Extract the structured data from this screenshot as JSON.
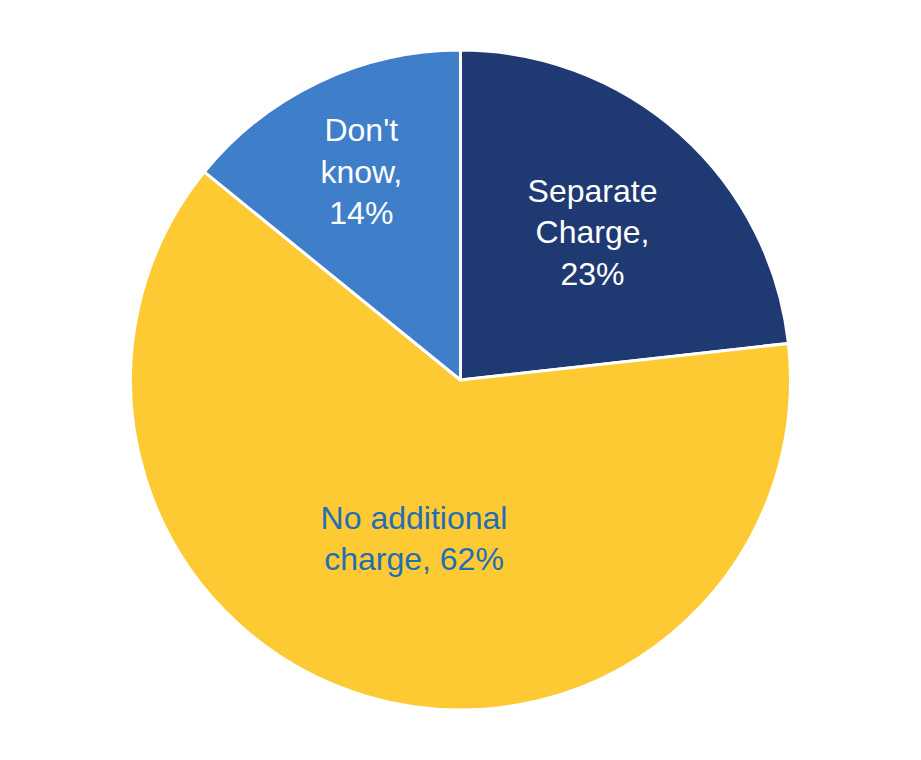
{
  "chart_data": {
    "type": "pie",
    "categories": [
      "Separate Charge",
      "No additional charge",
      "Don't know"
    ],
    "values": [
      23,
      62,
      14
    ],
    "value_labels": [
      "Separate Charge, 23%",
      "No additional charge, 62%",
      "Don't know, 14%"
    ],
    "colors": [
      "#1f3a73",
      "#fdca33",
      "#3f7ec8"
    ],
    "data_labels": true
  }
}
